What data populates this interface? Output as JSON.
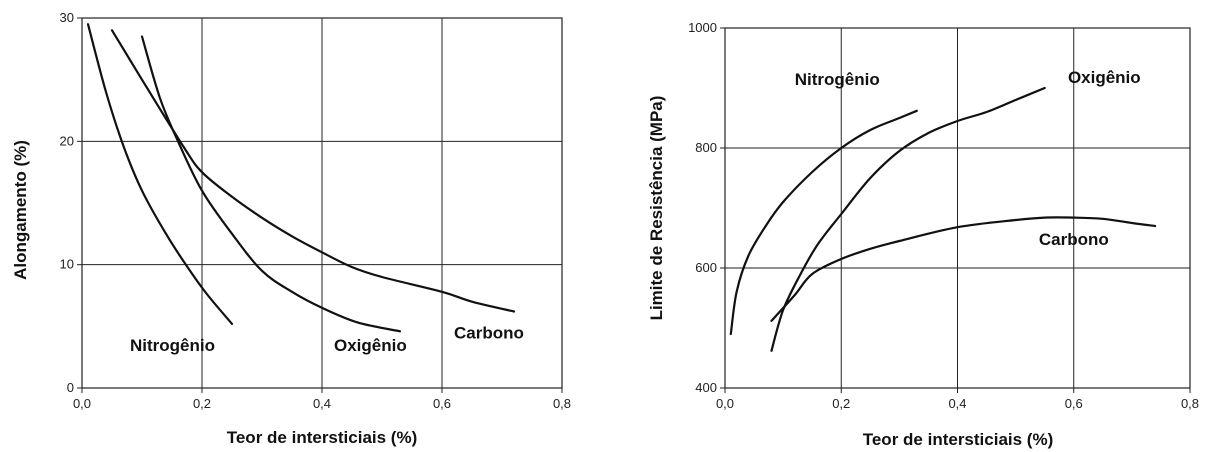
{
  "chart_data": [
    {
      "type": "line",
      "xlabel": "Teor de intersticiais (%)",
      "ylabel": "Alongamento (%)",
      "xlim": [
        0,
        0.8
      ],
      "ylim": [
        0,
        30
      ],
      "xticks": [
        0,
        0.2,
        0.4,
        0.6,
        0.8
      ],
      "xtick_labels": [
        "0,0",
        "0,2",
        "0,4",
        "0,6",
        "0,8"
      ],
      "yticks": [
        0,
        10,
        20,
        30
      ],
      "ytick_labels": [
        "0",
        "10",
        "20",
        "30"
      ],
      "grid": true,
      "series": [
        {
          "name": "Nitrogênio",
          "x": [
            0.01,
            0.04,
            0.07,
            0.1,
            0.14,
            0.18,
            0.21,
            0.25
          ],
          "y": [
            29.5,
            24,
            19.5,
            16,
            12.5,
            9.5,
            7.5,
            5.2
          ]
        },
        {
          "name": "Oxigênio",
          "x": [
            0.1,
            0.13,
            0.16,
            0.2,
            0.25,
            0.3,
            0.35,
            0.4,
            0.46,
            0.53
          ],
          "y": [
            28.5,
            23.5,
            20,
            16,
            12.5,
            9.5,
            7.8,
            6.5,
            5.3,
            4.6
          ]
        },
        {
          "name": "Carbono",
          "x": [
            0.05,
            0.1,
            0.17,
            0.2,
            0.25,
            0.3,
            0.35,
            0.4,
            0.45,
            0.5,
            0.6,
            0.65,
            0.72
          ],
          "y": [
            29,
            25,
            19.5,
            17.5,
            15.5,
            13.8,
            12.3,
            11,
            9.8,
            9,
            7.8,
            7,
            6.2
          ]
        }
      ],
      "labels": [
        {
          "series": "Nitrogênio",
          "text": "Nitrogênio",
          "x": 0.08,
          "y": 3.0
        },
        {
          "series": "Oxigênio",
          "text": "Oxigênio",
          "x": 0.42,
          "y": 3.0
        },
        {
          "series": "Carbono",
          "text": "Carbono",
          "x": 0.62,
          "y": 4.0
        }
      ]
    },
    {
      "type": "line",
      "xlabel": "Teor de intersticiais (%)",
      "ylabel": "Limite de Resistência (MPa)",
      "xlim": [
        0,
        0.8
      ],
      "ylim": [
        400,
        1000
      ],
      "xticks": [
        0,
        0.2,
        0.4,
        0.6,
        0.8
      ],
      "xtick_labels": [
        "0,0",
        "0,2",
        "0,4",
        "0,6",
        "0,8"
      ],
      "yticks": [
        400,
        600,
        800,
        1000
      ],
      "ytick_labels": [
        "400",
        "600",
        "800",
        "1000"
      ],
      "grid": true,
      "series": [
        {
          "name": "Nitrogênio",
          "x": [
            0.01,
            0.02,
            0.04,
            0.07,
            0.1,
            0.15,
            0.2,
            0.25,
            0.3,
            0.33
          ],
          "y": [
            490,
            560,
            620,
            670,
            710,
            760,
            800,
            830,
            850,
            862
          ]
        },
        {
          "name": "Oxigênio",
          "x": [
            0.08,
            0.1,
            0.13,
            0.16,
            0.2,
            0.25,
            0.3,
            0.35,
            0.4,
            0.45,
            0.5,
            0.55
          ],
          "y": [
            462,
            530,
            590,
            640,
            690,
            750,
            795,
            825,
            845,
            860,
            880,
            900
          ]
        },
        {
          "name": "Carbono",
          "x": [
            0.08,
            0.12,
            0.15,
            0.2,
            0.25,
            0.3,
            0.4,
            0.5,
            0.55,
            0.6,
            0.65,
            0.7,
            0.74
          ],
          "y": [
            512,
            555,
            590,
            615,
            632,
            645,
            668,
            680,
            684,
            684,
            682,
            675,
            670
          ]
        }
      ],
      "labels": [
        {
          "series": "Nitrogênio",
          "text": "Nitrogênio",
          "x": 0.12,
          "y": 905
        },
        {
          "series": "Oxigênio",
          "text": "Oxigênio",
          "x": 0.59,
          "y": 908
        },
        {
          "series": "Carbono",
          "text": "Carbono",
          "x": 0.54,
          "y": 638
        }
      ]
    }
  ]
}
